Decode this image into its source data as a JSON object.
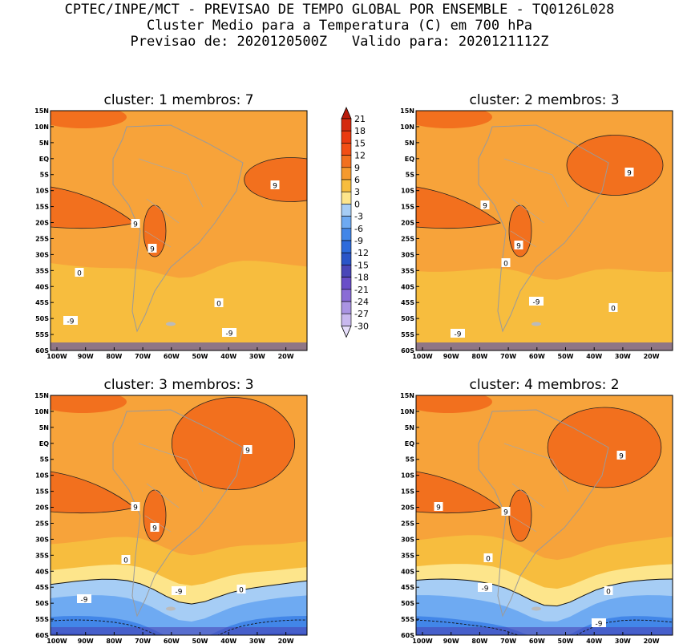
{
  "header": {
    "line1": "CPTEC/INPE/MCT - PREVISAO DE TEMPO GLOBAL POR ENSEMBLE - TQ0126L028",
    "line2": "Cluster Medio para a Temperatura (C) em 700 hPa",
    "line3": "Previsao de: 2020120500Z   Valido para: 2020121112Z"
  },
  "panels": [
    {
      "title": "cluster: 1   membros: 7",
      "labels": [
        "9",
        "9",
        "9",
        "0",
        "0",
        "-9",
        "-9"
      ]
    },
    {
      "title": "cluster: 2   membros: 3",
      "labels": [
        "9",
        "9",
        "9",
        "0",
        "0",
        "-9",
        "-9"
      ]
    },
    {
      "title": "cluster: 3   membros: 3",
      "labels": [
        "9",
        "9",
        "9",
        "0",
        "0",
        "-9",
        "-9"
      ]
    },
    {
      "title": "cluster: 4   membros: 2",
      "labels": [
        "9",
        "9",
        "9",
        "0",
        "0",
        "-9",
        "-9"
      ]
    }
  ],
  "axes": {
    "lat_ticks": [
      "15N",
      "10N",
      "5N",
      "EQ",
      "5S",
      "10S",
      "15S",
      "20S",
      "25S",
      "30S",
      "35S",
      "40S",
      "45S",
      "50S",
      "55S",
      "60S"
    ],
    "lon_ticks": [
      "100W",
      "90W",
      "80W",
      "70W",
      "60W",
      "50W",
      "40W",
      "30W",
      "20W"
    ]
  },
  "colorbar": {
    "labels": [
      "21",
      "18",
      "15",
      "12",
      "9",
      "6",
      "3",
      "0",
      "-3",
      "-6",
      "-9",
      "-12",
      "-15",
      "-18",
      "-21",
      "-24",
      "-27",
      "-30"
    ],
    "colors": [
      "#b91c0c",
      "#d42a0e",
      "#ea3a10",
      "#f24e14",
      "#f2701e",
      "#f59a2e",
      "#f7bd3e",
      "#fde58b",
      "#a6cdf5",
      "#6eaaf2",
      "#4286e8",
      "#2d6bdc",
      "#2a55c8",
      "#4a46b8",
      "#6a4ec8",
      "#8a6cd6",
      "#aa94e2",
      "#c8b8ee",
      "#e6defa"
    ]
  },
  "colors": {
    "ocean_warm": "#f7a33a",
    "warm_band": "#f2701e",
    "mid_band": "#f7bd3e",
    "pale_band": "#fde58b",
    "cool1": "#a6cdf5",
    "cool2": "#6eaaf2",
    "cool3": "#4286e8",
    "cool4": "#2d6bdc",
    "cool5": "#4a46b8"
  }
}
